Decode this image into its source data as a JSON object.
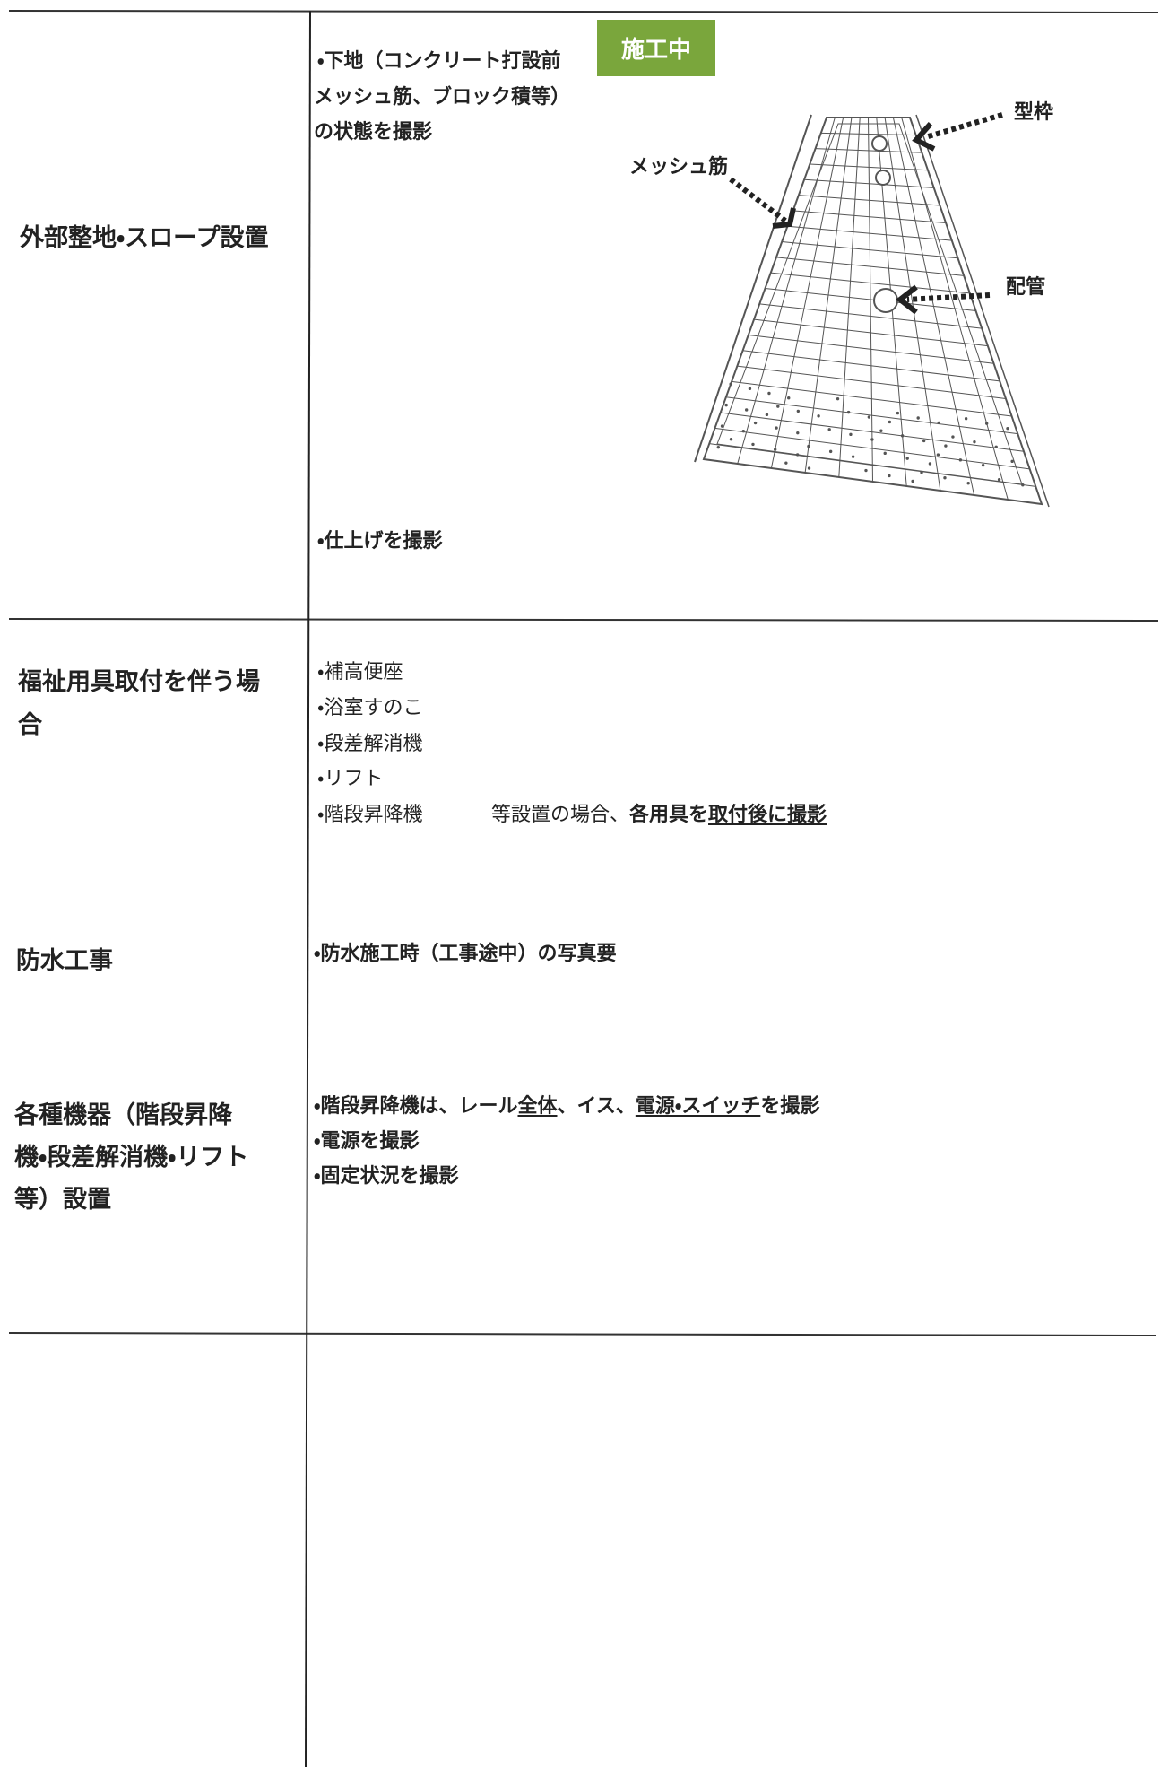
{
  "rows": [
    {
      "label_lines": [
        "外部整地・スロープ設置"
      ],
      "items": [
        "・下地（コンクリート打設前",
        "メッシュ筋、ブロック積等）",
        "の状態を撮影",
        "・仕上げを撮影"
      ],
      "badge": "施工中",
      "callouts": [
        "型枠",
        "メッシュ筋",
        "配管"
      ]
    },
    {
      "label_lines": [
        "福祉用具取付を伴う場",
        "合"
      ],
      "items": [
        "・補高便座",
        "・浴室すのこ",
        "・段差解消機",
        "・リフト",
        "・階段昇降機"
      ],
      "note": [
        "等設置の場合、",
        "各用具を",
        "取付後に撮影"
      ]
    },
    {
      "label_lines": [
        "防水工事"
      ],
      "items": [
        "・防水施工時（工事途中）の写真要"
      ]
    },
    {
      "label_lines": [
        "各種機器（階段昇降",
        "機・段差解消機・リフト",
        "等）設置"
      ],
      "items": [
        [
          "・階段昇降機は、レール",
          "全体",
          "、イス、",
          "電源・スイッチ",
          "を撮影"
        ],
        "・電源を撮影",
        "・固定状況を撮影"
      ]
    }
  ]
}
